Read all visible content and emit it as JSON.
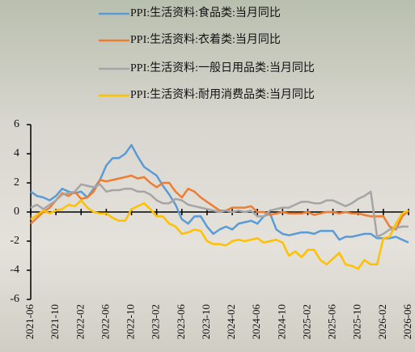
{
  "chart_data": {
    "type": "line",
    "categories": [
      "2021-06",
      null,
      null,
      null,
      "2021-10",
      null,
      null,
      null,
      "2022-02",
      null,
      null,
      null,
      "2022-06",
      null,
      null,
      null,
      "2022-10",
      null,
      null,
      null,
      "2023-02",
      null,
      null,
      null,
      "2023-06",
      null,
      null,
      null,
      "2023-10",
      null,
      null,
      null,
      "2024-02",
      null,
      null,
      null,
      "2024-06",
      null,
      null,
      null,
      "2024-10",
      null,
      null,
      null,
      "2025-02",
      null,
      null,
      null,
      "2025-06",
      null,
      null,
      null,
      "2025-10",
      null,
      null,
      null,
      "2026-02",
      null,
      null,
      null,
      "2026-06"
    ],
    "series": [
      {
        "name": "PPI:生活资料:食品类:当月同比",
        "color": "#5b9bd5",
        "values": [
          1.4,
          1.1,
          1.0,
          0.8,
          1.1,
          1.6,
          1.4,
          1.3,
          1.4,
          1.0,
          1.6,
          2.2,
          3.2,
          3.7,
          3.7,
          4.0,
          4.6,
          3.8,
          3.1,
          2.8,
          2.5,
          1.8,
          1.2,
          0.5,
          -0.5,
          -0.8,
          -0.3,
          -0.3,
          -1.0,
          -1.5,
          -1.2,
          -1.0,
          -1.2,
          -0.8,
          -0.7,
          -0.6,
          -0.8,
          -0.3,
          -0.1,
          -1.2,
          -1.5,
          -1.6,
          -1.5,
          -1.4,
          -1.4,
          -1.5,
          -1.3,
          -1.3,
          -1.3,
          -1.9,
          -1.7,
          -1.7,
          -1.6,
          -1.5,
          -1.5,
          -1.8,
          -1.8,
          -1.8,
          -1.7,
          -1.9,
          -2.1
        ]
      },
      {
        "name": "PPI:生活资料:衣着类:当月同比",
        "color": "#ed7d31",
        "values": [
          -0.8,
          -0.4,
          0.0,
          0.3,
          0.8,
          1.3,
          1.1,
          1.4,
          0.9,
          1.0,
          1.4,
          2.2,
          2.1,
          2.2,
          2.3,
          2.4,
          2.5,
          2.3,
          2.4,
          2.0,
          1.7,
          2.0,
          2.0,
          1.4,
          1.0,
          1.6,
          1.4,
          1.0,
          0.7,
          0.4,
          0.1,
          0.1,
          0.3,
          0.3,
          0.3,
          0.4,
          0.0,
          0.0,
          -0.2,
          -0.1,
          0.0,
          -0.1,
          -0.1,
          -0.1,
          0.0,
          -0.2,
          -0.1,
          0.0,
          0.0,
          -0.1,
          0.0,
          -0.1,
          -0.1,
          -0.2,
          -0.3,
          -0.3,
          -0.3,
          -1.0,
          -1.2,
          -0.3,
          0.1
        ]
      },
      {
        "name": "PPI:生活资料:一般日用品类:当月同比",
        "color": "#a5a5a5",
        "values": [
          0.3,
          0.5,
          0.2,
          0.5,
          0.8,
          1.2,
          1.3,
          1.4,
          1.9,
          1.8,
          1.7,
          1.9,
          1.4,
          1.5,
          1.5,
          1.6,
          1.6,
          1.4,
          1.4,
          1.2,
          0.8,
          0.6,
          0.6,
          0.9,
          0.8,
          0.5,
          0.4,
          0.3,
          0.2,
          0.1,
          0.0,
          0.1,
          0.0,
          0.1,
          0.0,
          0.1,
          -0.3,
          -0.3,
          0.1,
          0.2,
          0.3,
          0.3,
          0.5,
          0.7,
          0.7,
          0.6,
          0.6,
          0.8,
          0.8,
          0.6,
          0.4,
          0.6,
          0.9,
          1.1,
          1.4,
          -1.7,
          -1.5,
          -1.2,
          -1.1,
          -1.0,
          -1.0
        ]
      },
      {
        "name": "PPI:生活资料:耐用消费品类:当月同比",
        "color": "#ffc000",
        "values": [
          -0.5,
          -0.2,
          0.1,
          -0.1,
          0.1,
          0.2,
          0.5,
          0.4,
          0.8,
          0.3,
          0.0,
          -0.1,
          -0.1,
          -0.4,
          -0.6,
          -0.6,
          0.2,
          0.4,
          0.6,
          0.2,
          -0.3,
          -0.3,
          -0.8,
          -1.0,
          -1.5,
          -1.4,
          -1.2,
          -1.3,
          -2.0,
          -2.2,
          -2.2,
          -2.3,
          -2.0,
          -1.9,
          -2.0,
          -1.9,
          -1.8,
          -2.1,
          -2.0,
          -1.9,
          -2.1,
          -3.0,
          -2.7,
          -3.1,
          -2.6,
          -2.6,
          -3.3,
          -3.6,
          -3.2,
          -2.8,
          -3.6,
          -3.7,
          -3.9,
          -3.3,
          -3.6,
          -3.6,
          -1.8,
          -1.7,
          -0.8,
          -0.1,
          0.1
        ]
      }
    ],
    "ylim": [
      -6,
      6
    ],
    "yticks": [
      -6,
      -4,
      -2,
      0,
      2,
      4,
      6
    ]
  }
}
